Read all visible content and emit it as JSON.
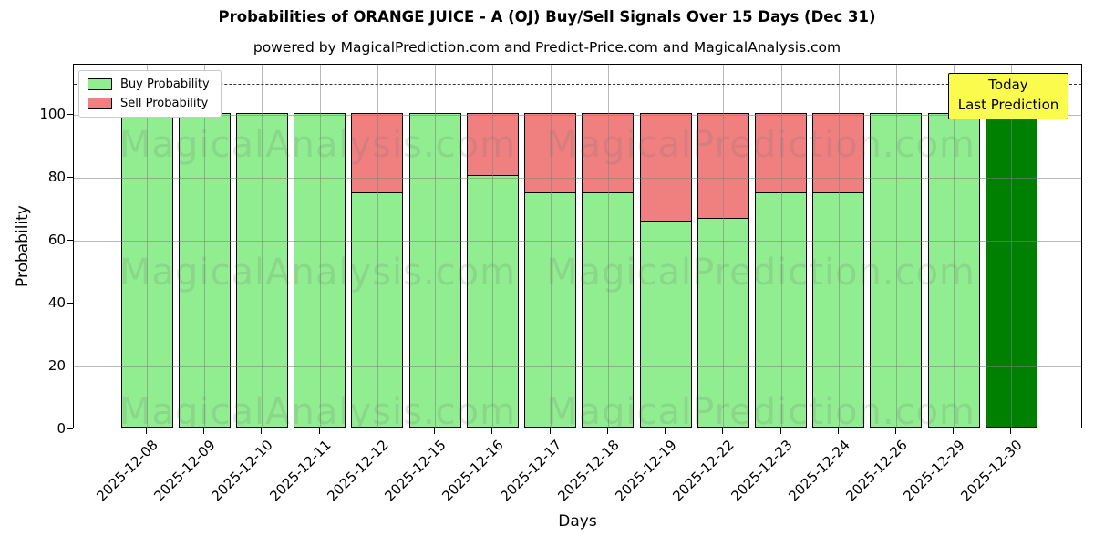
{
  "title": "Probabilities of ORANGE JUICE - A (OJ) Buy/Sell Signals Over 15 Days (Dec 31)",
  "subtitle": "powered by MagicalPrediction.com and Predict-Price.com and MagicalAnalysis.com",
  "legend": {
    "items": [
      {
        "label": "Buy Probability",
        "color": "#90EE90"
      },
      {
        "label": "Sell Probability",
        "color": "#F08080"
      }
    ]
  },
  "annotation": {
    "line1": "Today",
    "line2": "Last Prediction",
    "bg_color": "#FBFB4E"
  },
  "watermarks": {
    "left": "MagicalAnalysis.com",
    "right": "MagicalPrediction.com"
  },
  "colors": {
    "buy": "#90EE90",
    "sell": "#F08080",
    "today_bar": "#008000",
    "grid": "#808080"
  },
  "chart_data": {
    "type": "bar",
    "stacked": true,
    "title": "Probabilities of ORANGE JUICE - A (OJ) Buy/Sell Signals Over 15 Days (Dec 31)",
    "xlabel": "Days",
    "ylabel": "Probability",
    "categories": [
      "2025-12-08",
      "2025-12-09",
      "2025-12-10",
      "2025-12-11",
      "2025-12-12",
      "2025-12-15",
      "2025-12-16",
      "2025-12-17",
      "2025-12-18",
      "2025-12-19",
      "2025-12-22",
      "2025-12-23",
      "2025-12-24",
      "2025-12-26",
      "2025-12-29",
      "2025-12-30"
    ],
    "series": [
      {
        "name": "Buy Probability",
        "color": "#90EE90",
        "values": [
          100,
          100,
          100,
          100,
          75,
          100,
          80.6,
          75,
          75,
          66,
          67,
          75,
          75,
          100,
          100,
          100
        ]
      },
      {
        "name": "Sell Probability",
        "color": "#F08080",
        "values": [
          0,
          0,
          0,
          0,
          25,
          0,
          19.4,
          25,
          25,
          34,
          33,
          25,
          25,
          0,
          0,
          0
        ]
      }
    ],
    "special_bar": {
      "index": 15,
      "color": "#008000",
      "note": "Today Last Prediction"
    },
    "yticks": [
      0,
      20,
      40,
      60,
      80,
      100
    ],
    "ylim": [
      0,
      116
    ],
    "dashed_line_y": 110,
    "grid": true,
    "legend_position": "upper left"
  }
}
